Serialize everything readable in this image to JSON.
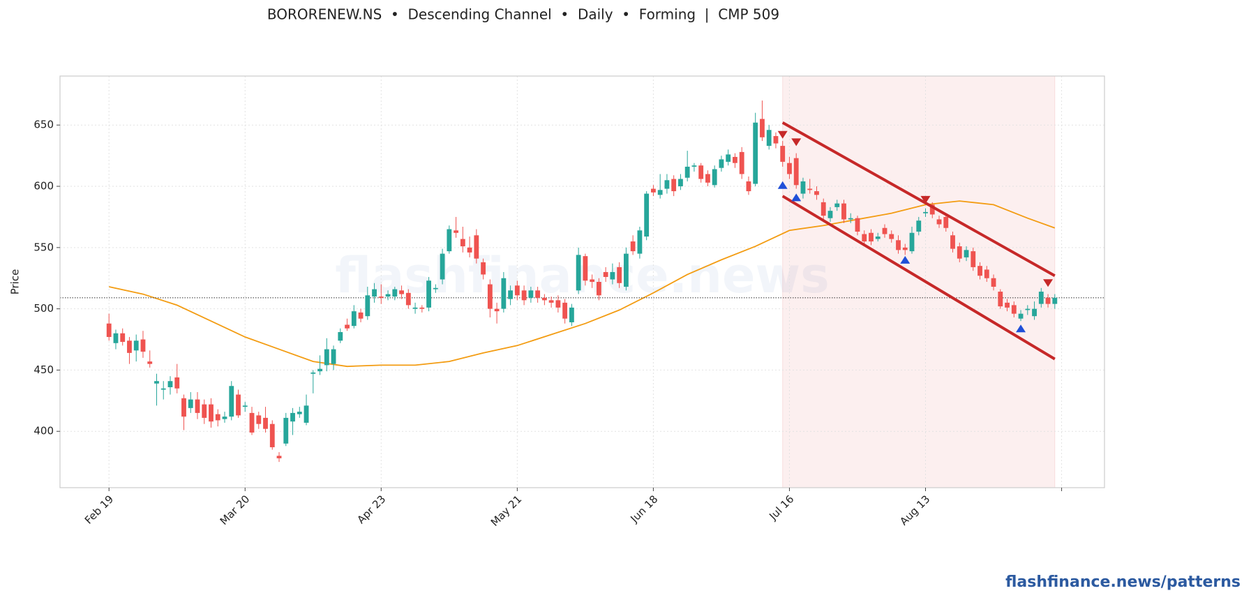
{
  "chart_data": {
    "type": "candlestick",
    "title": "BORORENEW.NS  •  Descending Channel  •  Daily  •  Forming  |  CMP 509",
    "ylabel": "Price",
    "watermark": "flashfinance.news",
    "footer": "flashfinance.news/patterns",
    "xlim": [
      -7.2,
      146.3
    ],
    "ylim": [
      354,
      690
    ],
    "yticks": [
      400,
      450,
      500,
      550,
      600,
      650
    ],
    "xticks": [
      {
        "value": 0,
        "label": "Feb 19"
      },
      {
        "value": 20,
        "label": "Mar 20"
      },
      {
        "value": 40,
        "label": "Apr 23"
      },
      {
        "value": 60,
        "label": "May 21"
      },
      {
        "value": 80,
        "label": "Jun 18"
      },
      {
        "value": 100,
        "label": "Jul 16"
      },
      {
        "value": 120,
        "label": "Aug 13"
      },
      {
        "value": 140
      }
    ],
    "grid": true,
    "up_color": "#26a69a",
    "down_color": "#ef5350",
    "open": [
      488,
      472,
      480,
      474,
      466,
      475,
      457,
      439,
      434,
      436,
      444,
      427,
      419,
      426,
      422,
      422,
      414,
      410,
      412,
      430,
      420,
      415,
      413,
      411,
      406,
      380,
      390,
      408,
      414,
      407,
      447,
      449,
      454,
      455,
      474,
      487,
      486,
      497,
      494,
      510,
      510,
      510,
      510,
      515,
      513,
      500,
      501,
      501,
      516,
      524,
      547,
      564,
      557,
      550,
      560,
      538,
      520,
      500,
      500,
      508,
      519,
      515,
      509,
      515,
      509,
      507,
      507,
      505,
      489,
      515,
      543,
      524,
      522,
      530,
      524,
      534,
      518,
      555,
      545,
      559,
      598,
      593,
      598,
      606,
      600,
      607,
      616,
      617,
      610,
      601,
      615,
      620,
      624,
      628,
      604,
      602,
      655,
      633,
      641,
      633,
      619,
      623,
      594,
      598,
      596,
      587,
      574,
      583,
      586,
      573,
      574,
      561,
      562,
      557,
      566,
      561,
      556,
      550,
      547,
      563,
      578,
      585,
      573,
      575,
      560,
      551,
      542,
      547,
      535,
      532,
      525,
      514,
      505,
      503,
      492,
      499,
      494,
      504,
      509,
      504
    ],
    "high": [
      496,
      483,
      484,
      477,
      479,
      482,
      466,
      447,
      441,
      445,
      455,
      430,
      432,
      432,
      426,
      427,
      418,
      416,
      441,
      434,
      424,
      420,
      416,
      420,
      409,
      383,
      415,
      419,
      420,
      430,
      450,
      462,
      476,
      470,
      484,
      492,
      503,
      500,
      518,
      521,
      520,
      515,
      518,
      519,
      516,
      505,
      503,
      526,
      520,
      549,
      568,
      575,
      567,
      559,
      565,
      541,
      524,
      505,
      530,
      519,
      523,
      519,
      518,
      518,
      512,
      510,
      511,
      508,
      504,
      550,
      545,
      528,
      525,
      534,
      537,
      538,
      550,
      560,
      567,
      596,
      601,
      610,
      610,
      609,
      610,
      629,
      619,
      619,
      613,
      617,
      625,
      630,
      627,
      632,
      608,
      660,
      670,
      650,
      644,
      637,
      624,
      627,
      607,
      606,
      600,
      590,
      583,
      589,
      589,
      578,
      576,
      564,
      565,
      562,
      569,
      564,
      560,
      553,
      567,
      575,
      582,
      587,
      576,
      578,
      563,
      554,
      551,
      550,
      538,
      535,
      528,
      516,
      508,
      506,
      499,
      503,
      506,
      517,
      512,
      512
    ],
    "low": [
      474,
      467,
      470,
      455,
      457,
      460,
      452,
      421,
      426,
      430,
      431,
      401,
      415,
      410,
      406,
      403,
      404,
      407,
      409,
      411,
      416,
      397,
      402,
      399,
      385,
      375,
      388,
      397,
      411,
      405,
      431,
      446,
      449,
      450,
      472,
      482,
      484,
      489,
      491,
      505,
      504,
      507,
      507,
      508,
      500,
      496,
      497,
      498,
      513,
      520,
      545,
      558,
      546,
      542,
      537,
      524,
      493,
      488,
      497,
      503,
      507,
      503,
      505,
      505,
      503,
      501,
      497,
      488,
      486,
      512,
      519,
      517,
      507,
      522,
      520,
      517,
      515,
      544,
      541,
      556,
      592,
      590,
      594,
      592,
      597,
      604,
      612,
      603,
      600,
      599,
      612,
      617,
      615,
      606,
      593,
      600,
      637,
      630,
      631,
      616,
      606,
      598,
      590,
      594,
      589,
      573,
      571,
      580,
      570,
      570,
      560,
      552,
      552,
      555,
      558,
      554,
      545,
      544,
      545,
      560,
      575,
      574,
      566,
      563,
      546,
      538,
      539,
      531,
      524,
      522,
      515,
      500,
      498,
      493,
      490,
      495,
      491,
      501,
      501,
      500
    ],
    "close": [
      477,
      480,
      473,
      464,
      474,
      465,
      455,
      441,
      435,
      441,
      435,
      412,
      426,
      415,
      411,
      408,
      409,
      412,
      437,
      413,
      421,
      399,
      406,
      402,
      387,
      378,
      411,
      415,
      416,
      421,
      448,
      451,
      467,
      467,
      481,
      484,
      498,
      492,
      511,
      516,
      509,
      512,
      516,
      512,
      503,
      501,
      500,
      523,
      517,
      545,
      565,
      562,
      551,
      546,
      541,
      528,
      500,
      498,
      525,
      515,
      511,
      507,
      515,
      509,
      507,
      505,
      501,
      492,
      501,
      544,
      523,
      522,
      511,
      526,
      530,
      521,
      545,
      547,
      564,
      594,
      595,
      597,
      605,
      596,
      606,
      616,
      617,
      606,
      603,
      614,
      622,
      626,
      619,
      610,
      596,
      652,
      640,
      646,
      635,
      620,
      610,
      601,
      604,
      597,
      593,
      576,
      580,
      586,
      573,
      574,
      563,
      555,
      555,
      559,
      561,
      557,
      548,
      548,
      562,
      572,
      579,
      577,
      569,
      566,
      549,
      541,
      548,
      534,
      527,
      525,
      518,
      502,
      501,
      496,
      496,
      500,
      500,
      514,
      504,
      509
    ],
    "moving_average": {
      "color": "#f39c12",
      "x": [
        0,
        5,
        10,
        15,
        20,
        25,
        30,
        35,
        40,
        45,
        50,
        55,
        60,
        65,
        70,
        75,
        80,
        85,
        90,
        95,
        100,
        105,
        110,
        115,
        120,
        125,
        130,
        135,
        139
      ],
      "values": [
        518,
        512,
        503,
        490,
        477,
        467,
        457,
        453,
        454,
        454,
        457,
        464,
        470,
        479,
        488,
        499,
        513,
        528,
        540,
        551,
        564,
        568,
        573,
        578,
        585,
        588,
        585,
        574,
        566
      ]
    },
    "cmp": 509,
    "pattern_range": [
      99,
      139
    ],
    "channel": {
      "color": "#c62828",
      "upper": {
        "x": [
          99,
          139
        ],
        "values": [
          652,
          527
        ]
      },
      "lower": {
        "x": [
          99,
          139
        ],
        "values": [
          592,
          459
        ]
      }
    },
    "pivot_highs": {
      "color": "#c62828",
      "x": [
        99,
        101,
        120,
        138
      ],
      "values": [
        642,
        636,
        589,
        521
      ]
    },
    "pivot_lows": {
      "color": "#1f4fd8",
      "x": [
        99,
        101,
        117,
        134
      ],
      "values": [
        601,
        591,
        540,
        484
      ]
    }
  }
}
